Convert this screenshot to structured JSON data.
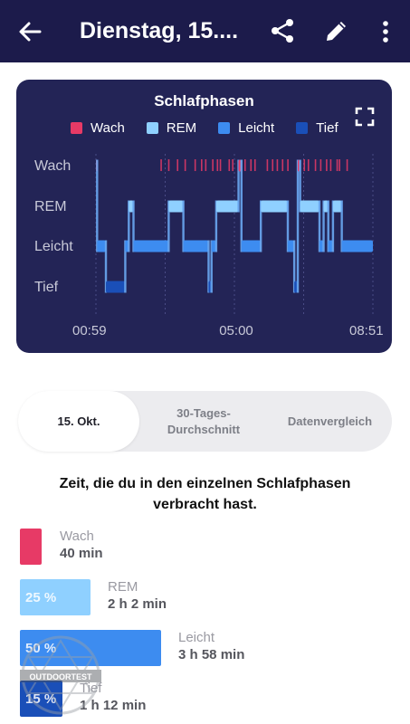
{
  "appbar": {
    "title": "Dienstag, 15...."
  },
  "icons": [
    "arrow-back-icon",
    "share-icon",
    "pencil-icon",
    "more-vert-icon",
    "fullscreen-icon"
  ],
  "colors": {
    "appbar_bg": "#1c1b4b",
    "card_bg": "#232456",
    "wach": "#e73a66",
    "rem": "#8fd0ff",
    "leicht": "#3d8cf0",
    "tief": "#1a4fb8"
  },
  "chart_data": {
    "type": "area",
    "title": "Schlafphasen",
    "legend": [
      "Wach",
      "REM",
      "Leicht",
      "Tief"
    ],
    "legend_position": "top",
    "stage_axis": [
      "Wach",
      "REM",
      "Leicht",
      "Tief"
    ],
    "x_ticks": [
      "00:59",
      "05:00",
      "08:51"
    ],
    "x_range": [
      "00:59",
      "08:51"
    ],
    "grid": "vertical dotted lines",
    "hypnogram": [
      {
        "start": "00:59",
        "end": "01:01",
        "stage": "Wach"
      },
      {
        "start": "01:01",
        "end": "01:16",
        "stage": "Leicht"
      },
      {
        "start": "01:16",
        "end": "01:49",
        "stage": "Tief"
      },
      {
        "start": "01:49",
        "end": "01:55",
        "stage": "Leicht"
      },
      {
        "start": "01:55",
        "end": "02:03",
        "stage": "REM"
      },
      {
        "start": "02:03",
        "end": "03:03",
        "stage": "Leicht"
      },
      {
        "start": "03:03",
        "end": "03:28",
        "stage": "REM"
      },
      {
        "start": "03:28",
        "end": "04:11",
        "stage": "Leicht"
      },
      {
        "start": "04:11",
        "end": "04:16",
        "stage": "Tief"
      },
      {
        "start": "04:16",
        "end": "04:24",
        "stage": "Leicht"
      },
      {
        "start": "04:24",
        "end": "05:02",
        "stage": "REM"
      },
      {
        "start": "05:02",
        "end": "05:07",
        "stage": "Wach"
      },
      {
        "start": "05:07",
        "end": "05:40",
        "stage": "Leicht"
      },
      {
        "start": "05:40",
        "end": "06:26",
        "stage": "REM"
      },
      {
        "start": "06:26",
        "end": "06:37",
        "stage": "Leicht"
      },
      {
        "start": "06:37",
        "end": "06:43",
        "stage": "Tief"
      },
      {
        "start": "06:43",
        "end": "06:47",
        "stage": "Wach"
      },
      {
        "start": "06:47",
        "end": "07:20",
        "stage": "REM"
      },
      {
        "start": "07:20",
        "end": "07:27",
        "stage": "Leicht"
      },
      {
        "start": "07:27",
        "end": "07:35",
        "stage": "REM"
      },
      {
        "start": "07:35",
        "end": "07:43",
        "stage": "Leicht"
      },
      {
        "start": "07:43",
        "end": "07:58",
        "stage": "REM"
      },
      {
        "start": "07:58",
        "end": "08:51",
        "stage": "Leicht"
      }
    ],
    "wake_ticks": [
      "02:50",
      "03:03",
      "03:18",
      "03:31",
      "03:48",
      "03:59",
      "04:06",
      "04:18",
      "04:26",
      "04:31",
      "04:46",
      "04:52",
      "05:13",
      "05:23",
      "05:30",
      "05:51",
      "06:00",
      "06:08",
      "06:17",
      "06:26",
      "06:54",
      "07:01",
      "07:13",
      "07:22",
      "07:32",
      "07:39",
      "07:50",
      "07:54",
      "08:07"
    ]
  },
  "tabs": [
    {
      "label": "15. Okt.",
      "active": true
    },
    {
      "label": "30-Tages-\nDurchschnitt",
      "active": false
    },
    {
      "label": "Datenvergleich",
      "active": false
    }
  ],
  "summary": {
    "heading": "Zeit, die du in den einzelnen Schlafphasen verbracht hast."
  },
  "stages": [
    {
      "name": "Wach",
      "duration": "40 min",
      "percent": "",
      "share": 0.085
    },
    {
      "name": "REM",
      "duration": "2 h 2 min",
      "percent": "25 %",
      "share": 0.25
    },
    {
      "name": "Leicht",
      "duration": "3 h 58 min",
      "percent": "50 %",
      "share": 0.5
    },
    {
      "name": "Tief",
      "duration": "1 h 12 min",
      "percent": "15 %",
      "share": 0.15
    }
  ],
  "watermark": {
    "text": "OUTDOORTEST"
  }
}
